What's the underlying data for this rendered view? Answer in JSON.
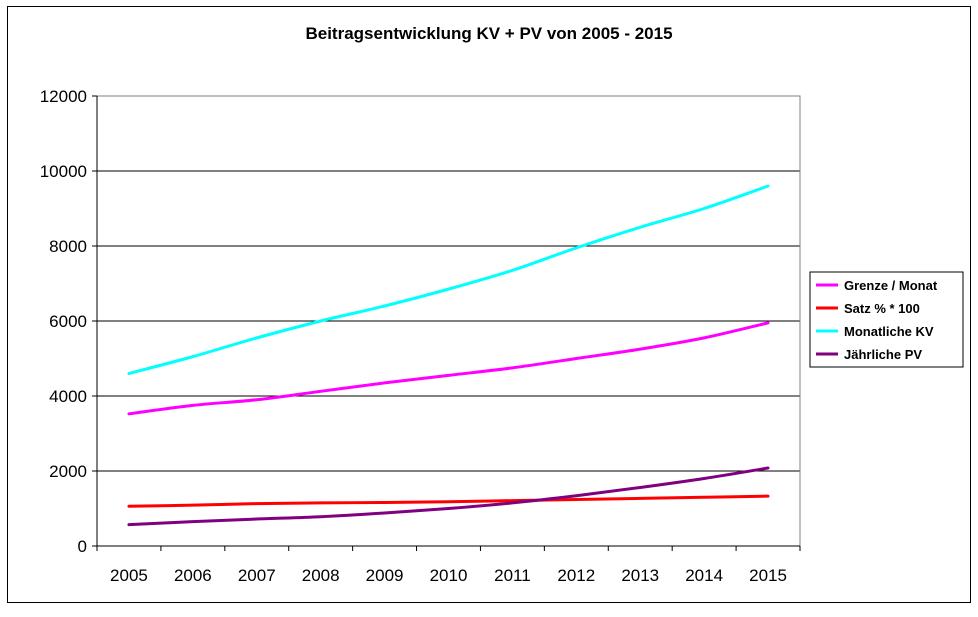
{
  "chart_data": {
    "type": "line",
    "title": "Beitragsentwicklung KV + PV von 2005 - 2015",
    "xlabel": "",
    "ylabel": "",
    "categories": [
      "2005",
      "2006",
      "2007",
      "2008",
      "2009",
      "2010",
      "2011",
      "2012",
      "2013",
      "2014",
      "2015"
    ],
    "ylim": [
      0,
      12000
    ],
    "yticks": [
      "0",
      "2000",
      "4000",
      "6000",
      "8000",
      "10000",
      "12000"
    ],
    "grid": true,
    "legend_position": "right",
    "series": [
      {
        "name": "Grenze / Monat",
        "color": "#ff00ff",
        "values": [
          3525,
          3750,
          3900,
          4125,
          4350,
          4550,
          4750,
          5000,
          5250,
          5550,
          5950
        ]
      },
      {
        "name": "Satz % * 100",
        "color": "#ff0000",
        "values": [
          1060,
          1090,
          1130,
          1150,
          1160,
          1180,
          1210,
          1240,
          1270,
          1300,
          1330
        ]
      },
      {
        "name": "Monatliche KV",
        "color": "#00ffff",
        "values": [
          4600,
          5050,
          5550,
          6000,
          6400,
          6850,
          7350,
          7950,
          8500,
          9000,
          9600
        ]
      },
      {
        "name": "Jährliche PV",
        "color": "#800080",
        "values": [
          570,
          650,
          720,
          780,
          880,
          1000,
          1150,
          1340,
          1560,
          1800,
          2080
        ]
      }
    ]
  }
}
